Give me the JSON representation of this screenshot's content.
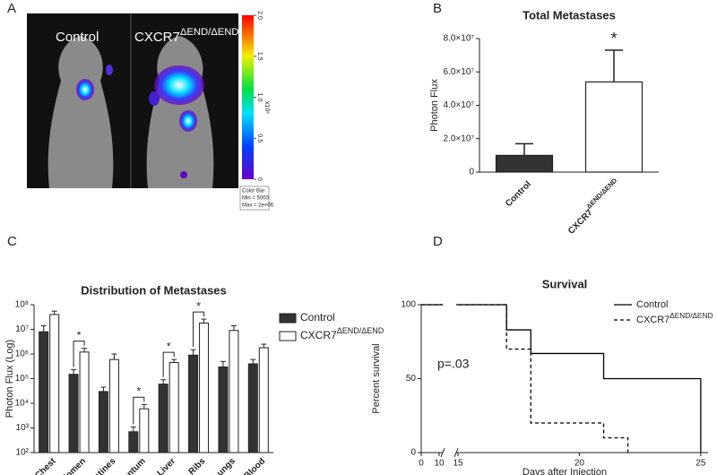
{
  "panel_labels": [
    "A",
    "B",
    "C",
    "D"
  ],
  "image_panel": {
    "labels": [
      "Control",
      "CXCR7ΔEND/ΔEND"
    ],
    "colorbar": {
      "ticks": [
        0,
        0.5,
        {
          "value": 1,
          "label": "1.0"
        },
        1.5,
        {
          "value": 2,
          "label": "2.0"
        }
      ],
      "unit": "x10⁶",
      "note": [
        "Color Bar",
        "Min = 5000",
        "Max = 2e+06"
      ]
    }
  },
  "chart_data": [
    {
      "type": "bar",
      "title": "Total Metastases",
      "y_label": "Photon Flux",
      "categories": [
        "Control",
        "CXCR7ΔEND/ΔEND"
      ],
      "values": [
        10000000,
        54000000
      ],
      "errors": [
        7000000,
        19000000
      ],
      "colors": [
        "#333333",
        "#ffffff"
      ],
      "ylim": [
        0,
        80000000
      ],
      "yticks": [
        0,
        {
          "value": 20000000,
          "label": "2.0×10⁷"
        },
        {
          "value": 40000000,
          "label": "4.0×10⁷"
        },
        {
          "value": 60000000,
          "label": "6.0×10⁷"
        },
        {
          "value": 80000000,
          "label": "8.0×10⁷"
        }
      ],
      "annotation": "*"
    },
    {
      "type": "grouped_bar",
      "title": "Distribution of Metastases",
      "y_label": "Photon Flux (Log)",
      "log_scale": true,
      "categories": [
        "Chest",
        "Abdomen",
        "Intestines",
        "Omentum",
        "Liver",
        "Ribs",
        "Lungs",
        "Blood"
      ],
      "series": [
        {
          "name": "Control",
          "color": "#333333",
          "values": [
            8000000,
            150000,
            30000,
            700,
            60000,
            900000,
            300000,
            400000
          ],
          "errors": [
            6000000,
            80000,
            15000,
            400,
            30000,
            600000,
            200000,
            200000
          ]
        },
        {
          "name": "CXCR7ΔEND/ΔEND",
          "color": "#ffffff",
          "values": [
            40000000,
            1200000,
            600000,
            6000,
            450000,
            18000000,
            9000000,
            1800000
          ],
          "errors": [
            15000000,
            500000,
            400000,
            3000,
            150000,
            8000000,
            5000000,
            700000
          ]
        }
      ],
      "ylim": [
        100,
        100000000
      ],
      "yticks": [
        {
          "value": 100,
          "label": "10²"
        },
        {
          "value": 1000,
          "label": "10³"
        },
        {
          "value": 10000,
          "label": "10⁴"
        },
        {
          "value": 100000,
          "label": "10⁵"
        },
        {
          "value": 1000000,
          "label": "10⁶"
        },
        {
          "value": 10000000,
          "label": "10⁷"
        },
        {
          "value": 100000000,
          "label": "10⁸"
        }
      ],
      "significance_categories": [
        "Abdomen",
        "Omentum",
        "Liver",
        "Ribs"
      ],
      "significance_label": "*",
      "legend": "right"
    },
    {
      "type": "line",
      "step": true,
      "title": "Survival",
      "x_label": "Days after Injection",
      "y_label": "Percent survival",
      "series": [
        {
          "name": "Control",
          "color": "#000000",
          "dash": false,
          "x": [
            0,
            17,
            18,
            21,
            25
          ],
          "values": [
            100,
            83,
            67,
            50,
            0
          ]
        },
        {
          "name": "CXCR7ΔEND/ΔEND",
          "color": "#000000",
          "dash": true,
          "x": [
            0,
            17,
            18,
            21,
            22
          ],
          "values": [
            100,
            70,
            20,
            10,
            0
          ]
        }
      ],
      "xlim": [
        0,
        25.3
      ],
      "x_break": [
        11,
        15
      ],
      "xticks": [
        0,
        10,
        15,
        20,
        25
      ],
      "ylim": [
        0,
        100
      ],
      "yticks": [
        0,
        50,
        100
      ],
      "annotation": "p=.03",
      "legend": "upper right"
    }
  ]
}
